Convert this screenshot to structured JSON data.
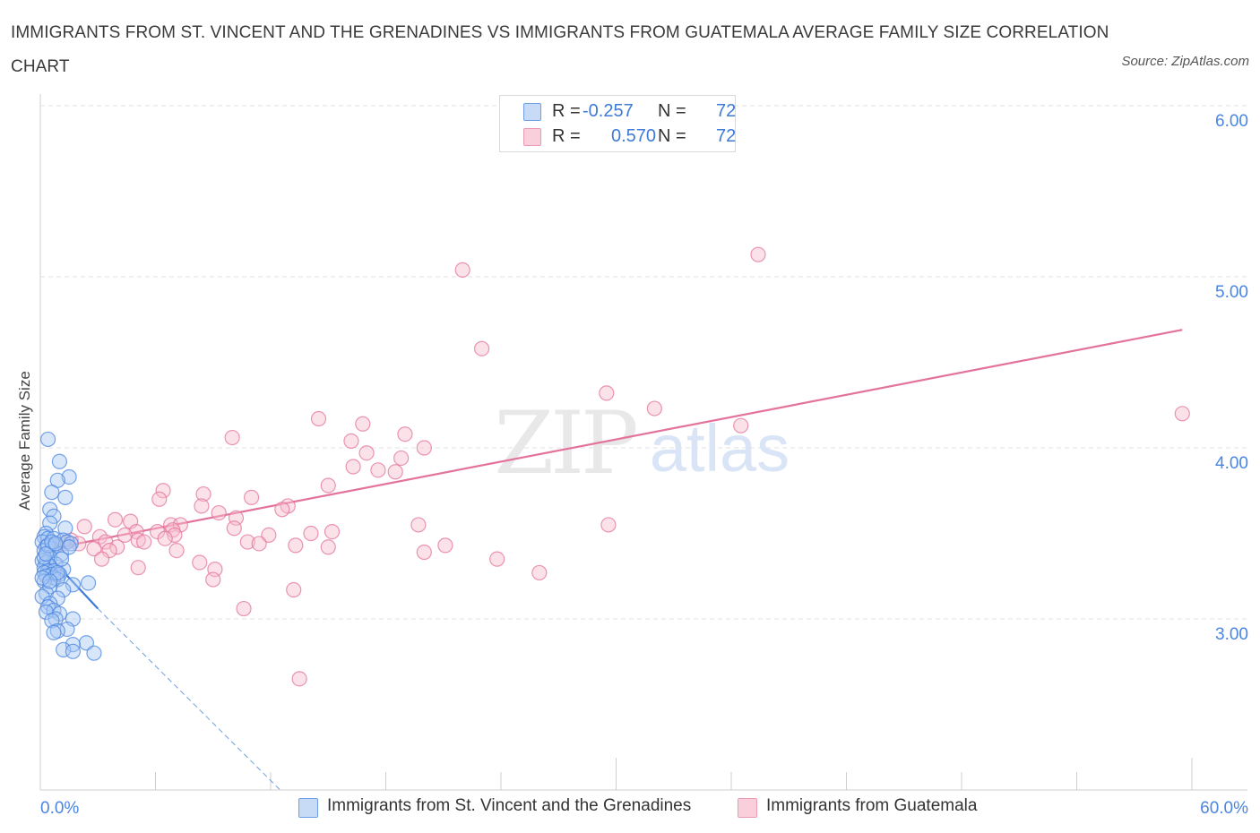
{
  "title": "IMMIGRANTS FROM ST. VINCENT AND THE GRENADINES VS IMMIGRANTS FROM GUATEMALA AVERAGE FAMILY SIZE CORRELATION CHART",
  "source": "Source: ZipAtlas.com",
  "watermark": {
    "zip": "ZIP",
    "atlas": "atlas"
  },
  "legend_top": [
    {
      "r_label": "R =",
      "r_value": "-0.257",
      "n_label": "N =",
      "n_value": "72",
      "color": "#a9c8f3"
    },
    {
      "r_label": "R =",
      "r_value": "0.570",
      "n_label": "N =",
      "n_value": "72",
      "color": "#f6bccd"
    }
  ],
  "legend_bottom": [
    {
      "label": "Immigrants from St. Vincent and the Grenadines",
      "color": "#a9c8f3"
    },
    {
      "label": "Immigrants from Guatemala",
      "color": "#f6bccd"
    }
  ],
  "chart_data": {
    "type": "scatter",
    "title": "IMMIGRANTS FROM ST. VINCENT AND THE GRENADINES VS IMMIGRANTS FROM GUATEMALA AVERAGE FAMILY SIZE CORRELATION CHART",
    "xlabel": "",
    "ylabel": "Average Family Size",
    "xlim": [
      0,
      60
    ],
    "ylim": [
      2.0,
      6.0
    ],
    "x_tick_labels": [
      "0.0%",
      "60.0%"
    ],
    "y_ticks": [
      3.0,
      4.0,
      5.0,
      6.0
    ],
    "y_tick_labels": [
      "3.00",
      "4.00",
      "5.00",
      "6.00"
    ],
    "grid": true,
    "legend_position": "bottom",
    "series": [
      {
        "name": "Immigrants from St. Vincent and the Grenadines",
        "color": "#4a86e0",
        "fill": "#a9c8f3",
        "trend": {
          "x1": 0.0,
          "y1": 3.42,
          "x2": 3.0,
          "y2": 3.06,
          "dash_to_x": 12.5,
          "dash_to_y": 2.0
        },
        "points": [
          [
            0.4,
            4.05
          ],
          [
            1.0,
            3.92
          ],
          [
            1.5,
            3.83
          ],
          [
            0.9,
            3.81
          ],
          [
            0.6,
            3.74
          ],
          [
            1.3,
            3.71
          ],
          [
            0.5,
            3.64
          ],
          [
            0.7,
            3.6
          ],
          [
            0.5,
            3.56
          ],
          [
            1.3,
            3.53
          ],
          [
            0.3,
            3.5
          ],
          [
            0.2,
            3.48
          ],
          [
            0.4,
            3.47
          ],
          [
            0.7,
            3.47
          ],
          [
            1.2,
            3.46
          ],
          [
            1.4,
            3.45
          ],
          [
            0.1,
            3.45
          ],
          [
            1.6,
            3.44
          ],
          [
            0.8,
            3.43
          ],
          [
            0.3,
            3.42
          ],
          [
            0.6,
            3.41
          ],
          [
            0.2,
            3.4
          ],
          [
            1.1,
            3.38
          ],
          [
            0.5,
            3.36
          ],
          [
            0.1,
            3.34
          ],
          [
            0.3,
            3.33
          ],
          [
            0.8,
            3.32
          ],
          [
            0.5,
            3.31
          ],
          [
            0.2,
            3.3
          ],
          [
            1.2,
            3.29
          ],
          [
            0.4,
            3.28
          ],
          [
            0.7,
            3.28
          ],
          [
            0.2,
            3.27
          ],
          [
            0.6,
            3.26
          ],
          [
            1.0,
            3.26
          ],
          [
            0.3,
            3.25
          ],
          [
            0.7,
            3.24
          ],
          [
            0.9,
            3.23
          ],
          [
            0.2,
            3.22
          ],
          [
            2.5,
            3.21
          ],
          [
            1.7,
            3.2
          ],
          [
            0.5,
            3.19
          ],
          [
            1.2,
            3.17
          ],
          [
            0.3,
            3.15
          ],
          [
            0.1,
            3.13
          ],
          [
            0.9,
            3.12
          ],
          [
            0.5,
            3.09
          ],
          [
            0.4,
            3.07
          ],
          [
            0.7,
            3.05
          ],
          [
            0.3,
            3.04
          ],
          [
            1.0,
            3.03
          ],
          [
            1.7,
            3.0
          ],
          [
            0.8,
            3.0
          ],
          [
            0.6,
            2.99
          ],
          [
            1.4,
            2.94
          ],
          [
            0.9,
            2.93
          ],
          [
            0.7,
            2.92
          ],
          [
            2.4,
            2.86
          ],
          [
            1.7,
            2.85
          ],
          [
            1.2,
            2.82
          ],
          [
            1.7,
            2.81
          ],
          [
            2.8,
            2.8
          ],
          [
            0.2,
            3.36
          ],
          [
            0.4,
            3.43
          ],
          [
            0.6,
            3.45
          ],
          [
            0.9,
            3.27
          ],
          [
            1.1,
            3.35
          ],
          [
            0.1,
            3.24
          ],
          [
            0.3,
            3.38
          ],
          [
            0.5,
            3.22
          ],
          [
            0.8,
            3.44
          ],
          [
            1.5,
            3.42
          ]
        ]
      },
      {
        "name": "Immigrants from Guatemala",
        "color": "#e3739c",
        "fill": "#f6bccd",
        "trend": {
          "x1": 1.0,
          "y1": 3.42,
          "x2": 59.5,
          "y2": 4.69
        },
        "points": [
          [
            37.4,
            5.13
          ],
          [
            22.0,
            5.04
          ],
          [
            23.0,
            4.58
          ],
          [
            29.5,
            4.32
          ],
          [
            32.0,
            4.23
          ],
          [
            59.5,
            4.2
          ],
          [
            14.5,
            4.17
          ],
          [
            16.8,
            4.14
          ],
          [
            36.5,
            4.13
          ],
          [
            19.0,
            4.08
          ],
          [
            10.0,
            4.06
          ],
          [
            16.2,
            4.04
          ],
          [
            20.0,
            4.0
          ],
          [
            17.0,
            3.97
          ],
          [
            18.8,
            3.94
          ],
          [
            16.3,
            3.89
          ],
          [
            17.6,
            3.87
          ],
          [
            18.5,
            3.86
          ],
          [
            15.0,
            3.78
          ],
          [
            6.4,
            3.75
          ],
          [
            8.5,
            3.73
          ],
          [
            11.0,
            3.71
          ],
          [
            6.2,
            3.7
          ],
          [
            8.4,
            3.66
          ],
          [
            12.9,
            3.66
          ],
          [
            12.6,
            3.64
          ],
          [
            9.3,
            3.62
          ],
          [
            10.2,
            3.59
          ],
          [
            3.9,
            3.58
          ],
          [
            4.7,
            3.57
          ],
          [
            6.8,
            3.55
          ],
          [
            19.7,
            3.55
          ],
          [
            7.3,
            3.55
          ],
          [
            29.6,
            3.55
          ],
          [
            2.3,
            3.54
          ],
          [
            6.9,
            3.52
          ],
          [
            10.1,
            3.53
          ],
          [
            6.1,
            3.51
          ],
          [
            15.2,
            3.51
          ],
          [
            5.0,
            3.51
          ],
          [
            14.1,
            3.5
          ],
          [
            4.4,
            3.49
          ],
          [
            7.0,
            3.49
          ],
          [
            11.9,
            3.49
          ],
          [
            3.1,
            3.48
          ],
          [
            6.5,
            3.47
          ],
          [
            5.1,
            3.46
          ],
          [
            1.6,
            3.46
          ],
          [
            10.8,
            3.45
          ],
          [
            5.4,
            3.45
          ],
          [
            3.4,
            3.45
          ],
          [
            11.4,
            3.44
          ],
          [
            2.0,
            3.44
          ],
          [
            1.2,
            3.44
          ],
          [
            21.1,
            3.43
          ],
          [
            13.3,
            3.43
          ],
          [
            4.0,
            3.42
          ],
          [
            15.0,
            3.42
          ],
          [
            2.8,
            3.41
          ],
          [
            7.1,
            3.4
          ],
          [
            3.6,
            3.4
          ],
          [
            20.0,
            3.39
          ],
          [
            3.2,
            3.35
          ],
          [
            23.8,
            3.35
          ],
          [
            8.3,
            3.33
          ],
          [
            26.0,
            3.27
          ],
          [
            5.1,
            3.3
          ],
          [
            9.1,
            3.29
          ],
          [
            9.0,
            3.23
          ],
          [
            13.2,
            3.17
          ],
          [
            10.6,
            3.06
          ],
          [
            13.5,
            2.65
          ]
        ]
      }
    ]
  }
}
